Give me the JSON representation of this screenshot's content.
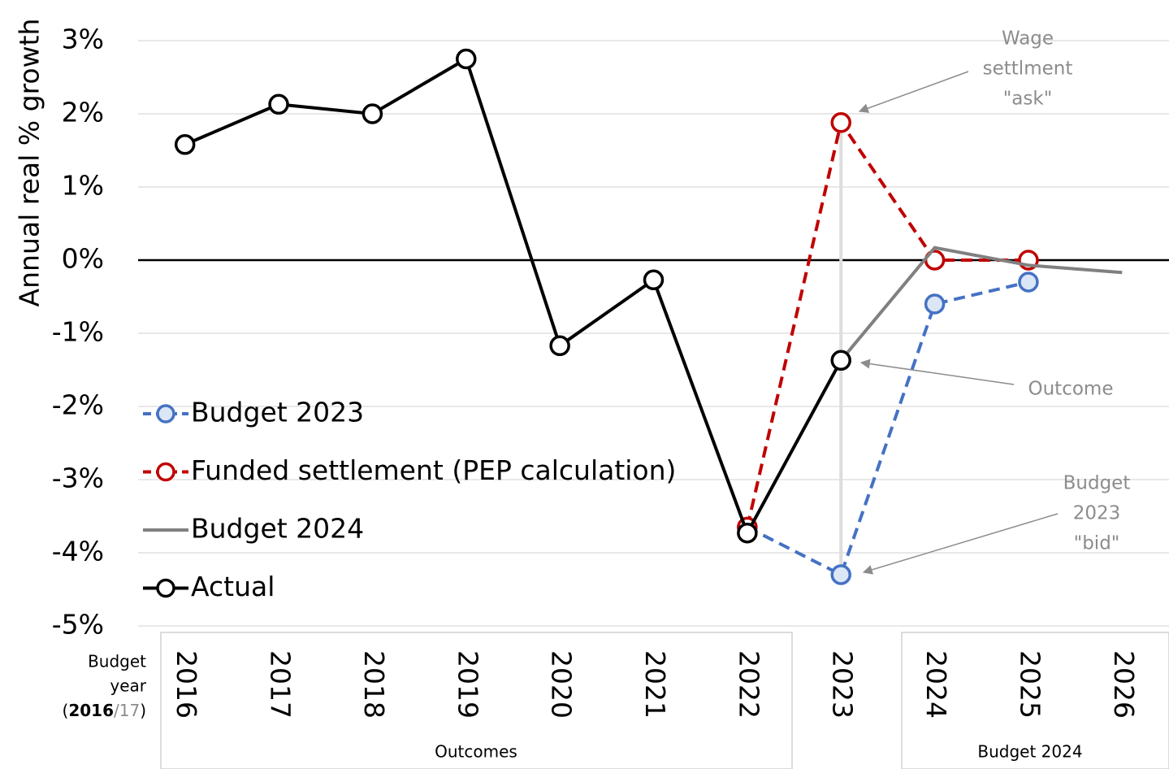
{
  "chart_data": {
    "type": "line",
    "y_axis_label": "Annual real % growth",
    "categories": [
      "2016",
      "2017",
      "2018",
      "2019",
      "2020",
      "2021",
      "2022",
      "2023",
      "2024",
      "2025",
      "2026"
    ],
    "series": [
      {
        "name": "Budget 2023",
        "color": "#4472c4",
        "marker_fill": "#dbe6f7",
        "dashed": true,
        "marker": true,
        "values": [
          null,
          null,
          null,
          null,
          null,
          null,
          -3.65,
          -4.3,
          -0.6,
          -0.3,
          null
        ]
      },
      {
        "name": "Funded settlement (PEP calculation)",
        "color": "#c00000",
        "marker_fill": "#ffffff",
        "dashed": true,
        "marker": true,
        "values": [
          null,
          null,
          null,
          null,
          null,
          null,
          -3.65,
          1.88,
          0,
          0,
          null
        ]
      },
      {
        "name": "Budget 2024",
        "color": "#808080",
        "dashed": false,
        "marker": false,
        "values": [
          null,
          null,
          null,
          null,
          null,
          null,
          null,
          -1.37,
          0.17,
          -0.07,
          -0.17
        ]
      },
      {
        "name": "Actual",
        "color": "#000000",
        "marker_fill": "#ffffff",
        "dashed": false,
        "marker": true,
        "values": [
          1.58,
          2.13,
          2.0,
          2.75,
          -1.17,
          -0.27,
          -3.73,
          -1.37,
          null,
          null,
          null
        ]
      }
    ],
    "ylim": [
      -5,
      3
    ],
    "yticks": [
      {
        "value": -5,
        "label": "-5%"
      },
      {
        "value": -4,
        "label": "-4%"
      },
      {
        "value": -3,
        "label": "-3%"
      },
      {
        "value": -2,
        "label": "-2%"
      },
      {
        "value": -1,
        "label": "-1%"
      },
      {
        "value": 0,
        "label": "0%"
      },
      {
        "value": 1,
        "label": "1%"
      },
      {
        "value": 2,
        "label": "2%"
      },
      {
        "value": 3,
        "label": "3%"
      }
    ],
    "grid": true,
    "legend_position": "lower left",
    "groups": [
      "Outcomes",
      "Budget 2024"
    ],
    "year_note": {
      "lines": [
        "Budget",
        "year"
      ],
      "open": "(",
      "bold": "2016",
      "rest": "/17",
      "close": ")"
    },
    "annotations": {
      "wage": [
        "Wage",
        "settlment",
        "\"ask\""
      ],
      "outcome": [
        "Outcome"
      ],
      "bid": [
        "Budget",
        "2023",
        "\"bid\""
      ]
    }
  }
}
